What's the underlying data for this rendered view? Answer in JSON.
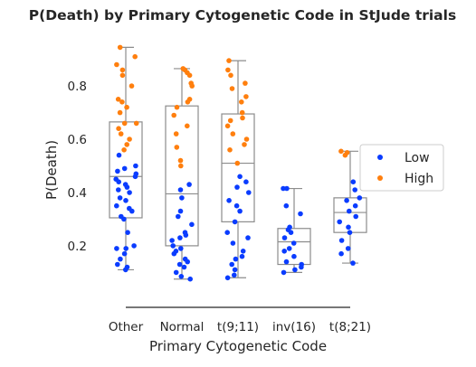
{
  "chart_data": {
    "type": "box-strip",
    "title": "P(Death) by Primary Cytogenetic Code in StJude trials",
    "xlabel": "Primary Cytogenetic Code",
    "ylabel": "P(Death)",
    "ylim": [
      0.03,
      0.97
    ],
    "yticks": [
      0.2,
      0.4,
      0.6,
      0.8
    ],
    "grid": false,
    "legend_position": "right",
    "categories": [
      "Other",
      "Normal",
      "t(9;11)",
      "inv(16)",
      "t(8;21)"
    ],
    "series": [
      {
        "name": "Low",
        "color": "#0a3cff"
      },
      {
        "name": "High",
        "color": "#ff7f0e"
      }
    ],
    "boxes": [
      {
        "min": 0.11,
        "q1": 0.305,
        "median": 0.46,
        "q3": 0.665,
        "max": 0.945
      },
      {
        "min": 0.075,
        "q1": 0.2,
        "median": 0.395,
        "q3": 0.725,
        "max": 0.865
      },
      {
        "min": 0.08,
        "q1": 0.29,
        "median": 0.51,
        "q3": 0.695,
        "max": 0.895
      },
      {
        "min": 0.1,
        "q1": 0.13,
        "median": 0.215,
        "q3": 0.265,
        "max": 0.415
      },
      {
        "min": 0.135,
        "q1": 0.25,
        "median": 0.325,
        "q3": 0.38,
        "max": 0.555
      }
    ],
    "points": [
      {
        "category": "Other",
        "series": "Low",
        "values": [
          0.11,
          0.12,
          0.13,
          0.15,
          0.17,
          0.19,
          0.19,
          0.2,
          0.25,
          0.3,
          0.31,
          0.33,
          0.34,
          0.35,
          0.37,
          0.38,
          0.4,
          0.41,
          0.42,
          0.43,
          0.44,
          0.45,
          0.46,
          0.47,
          0.48,
          0.49,
          0.5,
          0.54
        ]
      },
      {
        "category": "Other",
        "series": "High",
        "values": [
          0.56,
          0.58,
          0.6,
          0.62,
          0.64,
          0.66,
          0.66,
          0.7,
          0.72,
          0.74,
          0.75,
          0.8,
          0.84,
          0.86,
          0.88,
          0.91,
          0.945
        ]
      },
      {
        "category": "Normal",
        "series": "Low",
        "values": [
          0.075,
          0.085,
          0.1,
          0.12,
          0.13,
          0.14,
          0.15,
          0.17,
          0.18,
          0.19,
          0.2,
          0.22,
          0.23,
          0.24,
          0.25,
          0.28,
          0.31,
          0.33,
          0.38,
          0.41,
          0.43
        ]
      },
      {
        "category": "Normal",
        "series": "High",
        "values": [
          0.5,
          0.52,
          0.57,
          0.62,
          0.65,
          0.69,
          0.72,
          0.74,
          0.75,
          0.8,
          0.81,
          0.84,
          0.85,
          0.86,
          0.865
        ]
      },
      {
        "category": "t(9;11)",
        "series": "Low",
        "values": [
          0.08,
          0.09,
          0.11,
          0.13,
          0.15,
          0.16,
          0.18,
          0.21,
          0.23,
          0.25,
          0.29,
          0.33,
          0.35,
          0.37,
          0.4,
          0.42,
          0.44,
          0.46
        ]
      },
      {
        "category": "t(9;11)",
        "series": "High",
        "values": [
          0.51,
          0.56,
          0.58,
          0.6,
          0.62,
          0.65,
          0.67,
          0.68,
          0.7,
          0.74,
          0.76,
          0.79,
          0.81,
          0.84,
          0.86,
          0.895
        ]
      },
      {
        "category": "inv(16)",
        "series": "Low",
        "values": [
          0.1,
          0.11,
          0.12,
          0.13,
          0.14,
          0.16,
          0.18,
          0.19,
          0.21,
          0.23,
          0.25,
          0.26,
          0.27,
          0.32,
          0.35,
          0.415,
          0.415
        ]
      },
      {
        "category": "t(8;21)",
        "series": "Low",
        "values": [
          0.135,
          0.17,
          0.19,
          0.22,
          0.25,
          0.27,
          0.29,
          0.31,
          0.33,
          0.35,
          0.37,
          0.38,
          0.41,
          0.44
        ]
      },
      {
        "category": "t(8;21)",
        "series": "High",
        "values": [
          0.54,
          0.55,
          0.555
        ]
      }
    ]
  }
}
